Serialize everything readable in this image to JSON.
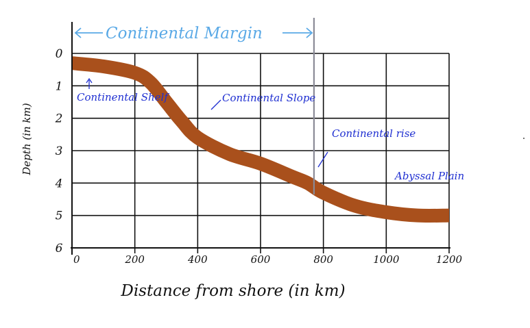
{
  "chart_data": {
    "type": "area",
    "title": "",
    "xlabel": "Distance from shore (in km)",
    "ylabel": "Depth (in km)",
    "xlim": [
      0,
      1200
    ],
    "ylim": [
      0,
      6
    ],
    "y_inverted": true,
    "grid": true,
    "x_ticks": [
      "0",
      "200",
      "400",
      "600",
      "800",
      "1000",
      "1200"
    ],
    "y_ticks": [
      "0",
      "1",
      "2",
      "3",
      "4",
      "5",
      "6"
    ],
    "series": [
      {
        "x": [
          0,
          100,
          200,
          250,
          300,
          350,
          400,
          500,
          600,
          700,
          750,
          800,
          900,
          1000,
          1100,
          1200
        ],
        "y": [
          0.3,
          0.4,
          0.6,
          0.9,
          1.5,
          2.1,
          2.6,
          3.1,
          3.4,
          3.8,
          4.0,
          4.3,
          4.7,
          4.9,
          5.0,
          5.0
        ]
      }
    ],
    "annotations": [
      {
        "text": "Continental Margin",
        "x_start": 0,
        "x_end": 770,
        "boundary_x": 770
      },
      {
        "text": "Continental Shelf",
        "x": 30,
        "y": 1.7
      },
      {
        "text": "Continental Slope",
        "x": 500,
        "y": 1.6
      },
      {
        "text": "Continental rise",
        "x": 850,
        "y": 2.7
      },
      {
        "text": "Abyssal Plain",
        "x": 1070,
        "y": 4.3
      }
    ],
    "colors": {
      "band": "#a9501c",
      "grid": "#111111",
      "label": "#1f2fd1",
      "margin": "#5aa9e6",
      "boundary": "#8a8a96"
    }
  }
}
